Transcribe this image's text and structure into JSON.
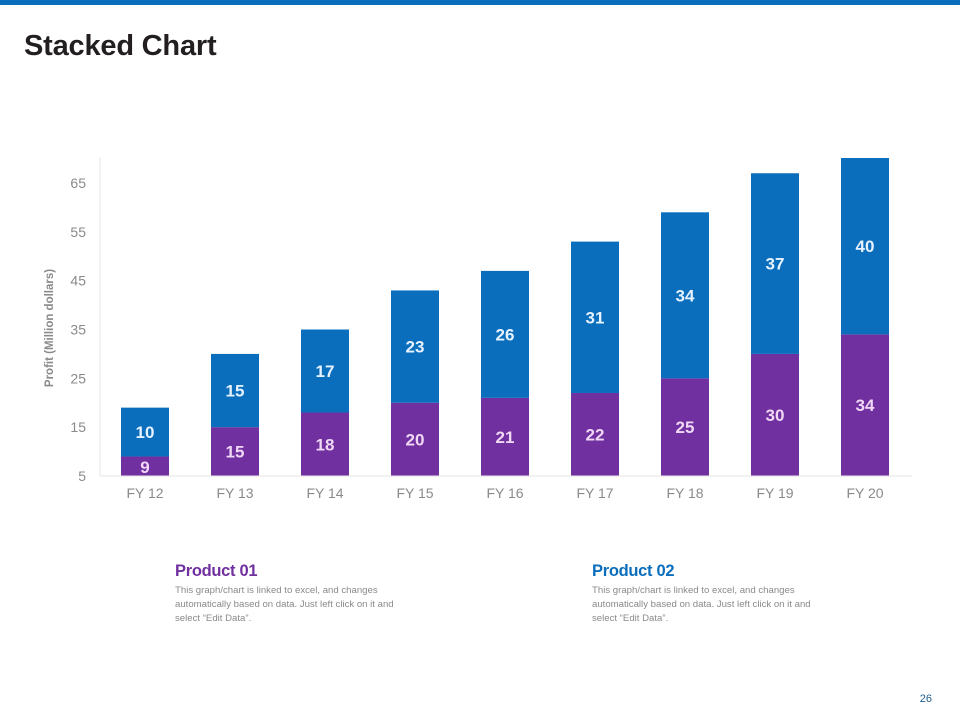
{
  "page": {
    "title": "Stacked Chart",
    "page_number": "26"
  },
  "colors": {
    "product01": "#7030a0",
    "product02": "#0a6ebd",
    "value_label_p1": "#f0d8f5",
    "value_label_p2": "#e6f2ff",
    "accent_bar": "#0a6ebd"
  },
  "chart_data": {
    "type": "bar",
    "stacked": true,
    "title": "",
    "xlabel": "",
    "ylabel": "Profit  (Million dollars)",
    "ylim": [
      5,
      70
    ],
    "yticks": [
      5,
      15,
      25,
      35,
      45,
      55,
      65
    ],
    "grid": false,
    "categories": [
      "FY 12",
      "FY 13",
      "FY 14",
      "FY 15",
      "FY 16",
      "FY 17",
      "FY 18",
      "FY 19",
      "FY 20"
    ],
    "series": [
      {
        "name": "Product 01",
        "color": "#7030a0",
        "values": [
          9,
          15,
          18,
          20,
          21,
          22,
          25,
          30,
          34
        ]
      },
      {
        "name": "Product 02",
        "color": "#0a6ebd",
        "values": [
          10,
          15,
          17,
          23,
          26,
          31,
          34,
          37,
          40
        ]
      }
    ]
  },
  "products": [
    {
      "name": "Product 01",
      "description": "This graph/chart is linked to excel, and changes automatically based on data. Just left click on it and select “Edit Data”."
    },
    {
      "name": "Product 02",
      "description": "This graph/chart is linked to excel, and changes automatically based on data. Just left click on it and select “Edit Data”."
    }
  ]
}
